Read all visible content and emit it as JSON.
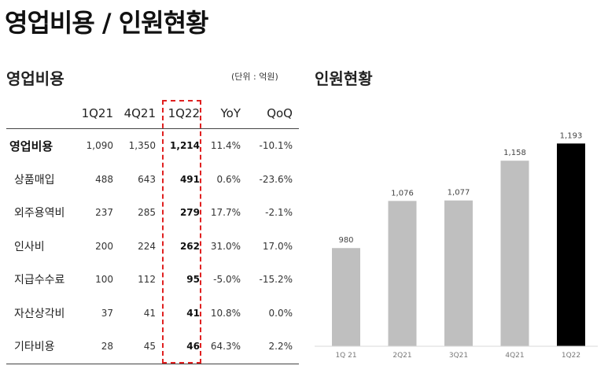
{
  "page_title": "영업비용 / 인원현황",
  "opex": {
    "title": "영업비용",
    "unit": "(단위 : 억원)",
    "columns": [
      "",
      "1Q21",
      "4Q21",
      "1Q22",
      "YoY",
      "QoQ"
    ],
    "rows": [
      {
        "label": "영업비용",
        "v1": "1,090",
        "v2": "1,350",
        "v3": "1,214",
        "yoy": "11.4%",
        "qoq": "-10.1%"
      },
      {
        "label": "상품매입",
        "v1": "488",
        "v2": "643",
        "v3": "491",
        "yoy": "0.6%",
        "qoq": "-23.6%"
      },
      {
        "label": "외주용역비",
        "v1": "237",
        "v2": "285",
        "v3": "279",
        "yoy": "17.7%",
        "qoq": "-2.1%"
      },
      {
        "label": "인사비",
        "v1": "200",
        "v2": "224",
        "v3": "262",
        "yoy": "31.0%",
        "qoq": "17.0%"
      },
      {
        "label": "지급수수료",
        "v1": "100",
        "v2": "112",
        "v3": "95",
        "yoy": "-5.0%",
        "qoq": "-15.2%"
      },
      {
        "label": "자산상각비",
        "v1": "37",
        "v2": "41",
        "v3": "41",
        "yoy": "10.8%",
        "qoq": "0.0%"
      },
      {
        "label": "기타비용",
        "v1": "28",
        "v2": "45",
        "v3": "46",
        "yoy": "64.3%",
        "qoq": "2.2%"
      }
    ]
  },
  "headcount_title": "인원현황",
  "chart_data": {
    "type": "bar",
    "title": "인원현황",
    "categories": [
      "1Q 21",
      "2Q21",
      "3Q21",
      "4Q21",
      "1Q22"
    ],
    "values": [
      980,
      1076,
      1077,
      1158,
      1193
    ],
    "value_labels": [
      "980",
      "1,076",
      "1,077",
      "1,158",
      "1,193"
    ],
    "ylim": [
      0,
      1300
    ],
    "grid": false,
    "colors": [
      "#bfbfbf",
      "#bfbfbf",
      "#bfbfbf",
      "#bfbfbf",
      "#000000"
    ],
    "xlabel": "",
    "ylabel": ""
  }
}
